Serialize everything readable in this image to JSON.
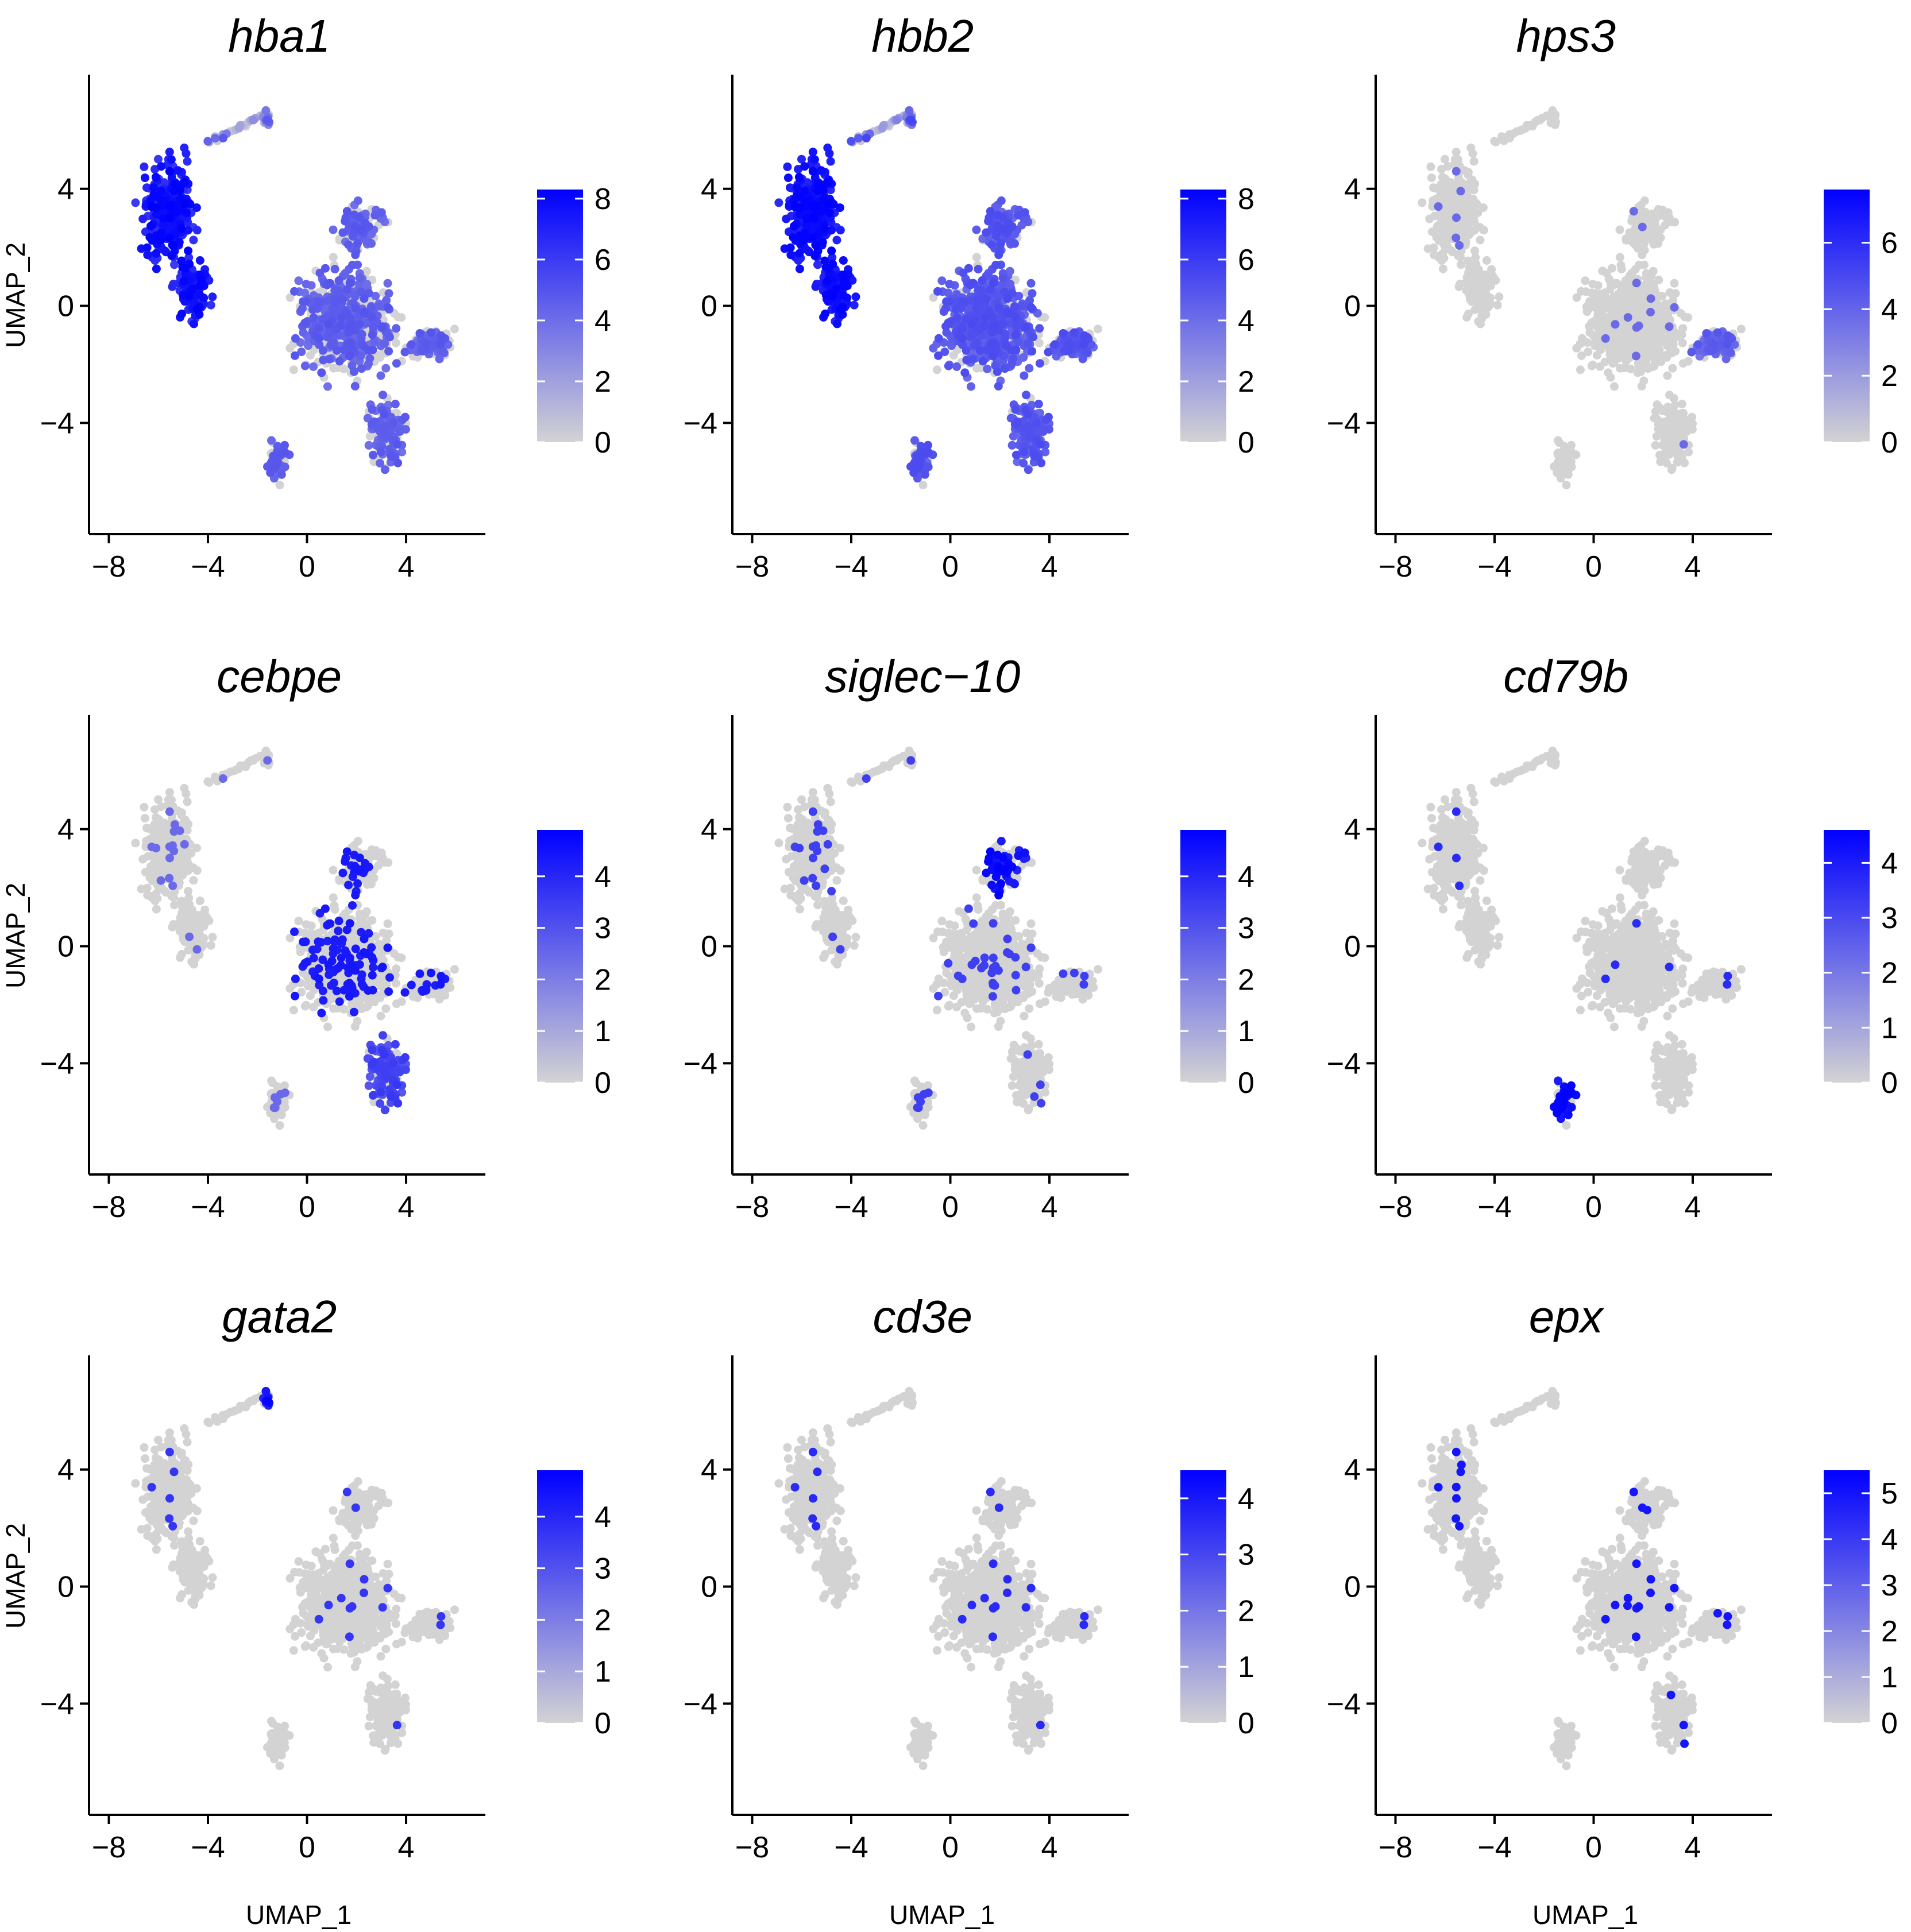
{
  "figure": {
    "xlabel": "UMAP_1",
    "ylabel": "UMAP_2"
  },
  "colors": {
    "low": "#d3d3d3",
    "high": "#0000ff",
    "axis": "#000000"
  },
  "chart_data": [
    {
      "type": "scatter",
      "title": "hba1",
      "xlabel": "UMAP_1",
      "ylabel": "UMAP_2",
      "xlim": [
        -8.8,
        7.2
      ],
      "ylim": [
        -7.8,
        7.9
      ],
      "xticks": [
        "−8",
        "−4",
        "0",
        "4"
      ],
      "yticks": [
        "−4",
        "0",
        "4"
      ],
      "colorbar": {
        "min": 0,
        "max": 8.3,
        "ticks": [
          "0",
          "2",
          "4",
          "6",
          "8"
        ]
      },
      "pattern": "erythroid_all_high"
    },
    {
      "type": "scatter",
      "title": "hbb2",
      "xlabel": "UMAP_1",
      "ylabel": "UMAP_2",
      "xlim": [
        -8.8,
        7.2
      ],
      "ylim": [
        -7.8,
        7.9
      ],
      "xticks": [
        "−8",
        "−4",
        "0",
        "4"
      ],
      "yticks": [
        "−4",
        "0",
        "4"
      ],
      "colorbar": {
        "min": 0,
        "max": 8.3,
        "ticks": [
          "0",
          "2",
          "4",
          "6",
          "8"
        ]
      },
      "pattern": "erythroid_all_very_high"
    },
    {
      "type": "scatter",
      "title": "hps3",
      "xlabel": "UMAP_1",
      "ylabel": "UMAP_2",
      "xlim": [
        -8.8,
        7.2
      ],
      "ylim": [
        -7.8,
        7.9
      ],
      "xticks": [
        "−8",
        "−4",
        "0",
        "4"
      ],
      "yticks": [
        "−4",
        "0",
        "4"
      ],
      "colorbar": {
        "min": 0,
        "max": 7.6,
        "ticks": [
          "0",
          "2",
          "4",
          "6"
        ]
      },
      "pattern": "right_lobe"
    },
    {
      "type": "scatter",
      "title": "cebpe",
      "xlabel": "UMAP_1",
      "ylabel": "UMAP_2",
      "xlim": [
        -8.8,
        7.2
      ],
      "ylim": [
        -7.8,
        7.9
      ],
      "xticks": [
        "−8",
        "−4",
        "0",
        "4"
      ],
      "yticks": [
        "−4",
        "0",
        "4"
      ],
      "colorbar": {
        "min": 0,
        "max": 4.9,
        "ticks": [
          "0",
          "1",
          "2",
          "3",
          "4"
        ]
      },
      "pattern": "main_scattered_bottom"
    },
    {
      "type": "scatter",
      "title": "siglec−10",
      "xlabel": "UMAP_1",
      "ylabel": "UMAP_2",
      "xlim": [
        -8.8,
        7.2
      ],
      "ylim": [
        -7.8,
        7.9
      ],
      "xticks": [
        "−8",
        "−4",
        "0",
        "4"
      ],
      "yticks": [
        "−4",
        "0",
        "4"
      ],
      "colorbar": {
        "min": 0,
        "max": 4.9,
        "ticks": [
          "0",
          "1",
          "2",
          "3",
          "4"
        ]
      },
      "pattern": "top_cluster"
    },
    {
      "type": "scatter",
      "title": "cd79b",
      "xlabel": "UMAP_1",
      "ylabel": "UMAP_2",
      "xlim": [
        -8.8,
        7.2
      ],
      "ylim": [
        -7.8,
        7.9
      ],
      "xticks": [
        "−8",
        "−4",
        "0",
        "4"
      ],
      "yticks": [
        "−4",
        "0",
        "4"
      ],
      "colorbar": {
        "min": 0,
        "max": 4.6,
        "ticks": [
          "0",
          "1",
          "2",
          "3",
          "4"
        ]
      },
      "pattern": "small_cluster"
    },
    {
      "type": "scatter",
      "title": "gata2",
      "xlabel": "UMAP_1",
      "ylabel": "UMAP_2",
      "xlim": [
        -8.8,
        7.2
      ],
      "ylim": [
        -7.8,
        7.9
      ],
      "xticks": [
        "−8",
        "−4",
        "0",
        "4"
      ],
      "yticks": [
        "−4",
        "0",
        "4"
      ],
      "colorbar": {
        "min": 0,
        "max": 4.9,
        "ticks": [
          "0",
          "1",
          "2",
          "3",
          "4"
        ]
      },
      "pattern": "tail"
    },
    {
      "type": "scatter",
      "title": "cd3e",
      "xlabel": "UMAP_1",
      "ylabel": "UMAP_2",
      "xlim": [
        -8.8,
        7.2
      ],
      "ylim": [
        -7.8,
        7.9
      ],
      "xticks": [
        "−8",
        "−4",
        "0",
        "4"
      ],
      "yticks": [
        "−4",
        "0",
        "4"
      ],
      "colorbar": {
        "min": 0,
        "max": 4.5,
        "ticks": [
          "0",
          "1",
          "2",
          "3",
          "4"
        ]
      },
      "pattern": "sparse"
    },
    {
      "type": "scatter",
      "title": "epx",
      "xlabel": "UMAP_1",
      "ylabel": "UMAP_2",
      "xlim": [
        -8.8,
        7.2
      ],
      "ylim": [
        -7.8,
        7.9
      ],
      "xticks": [
        "−8",
        "−4",
        "0",
        "4"
      ],
      "yticks": [
        "−4",
        "0",
        "4"
      ],
      "colorbar": {
        "min": 0,
        "max": 5.5,
        "ticks": [
          "0",
          "1",
          "2",
          "3",
          "4",
          "5"
        ]
      },
      "pattern": "sparse_epx"
    }
  ]
}
